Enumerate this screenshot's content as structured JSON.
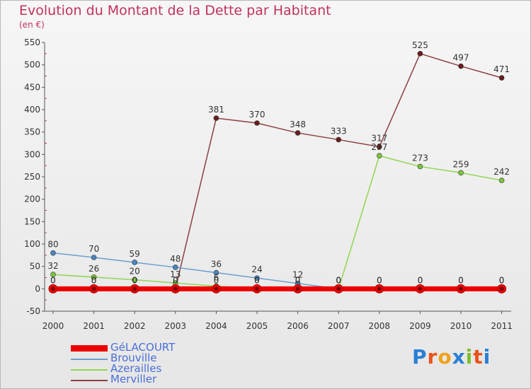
{
  "title": "Evolution du Montant de la Dette par Habitant",
  "unit": "(en €)",
  "logo": {
    "text": "Proxiti",
    "letter_colors": [
      "#2a7fd4",
      "#e8541c",
      "#f0a21b",
      "#2a7fd4",
      "#7cbf2a",
      "#e8541c",
      "#2a7fd4"
    ]
  },
  "chart_data": {
    "type": "line",
    "title": "Evolution du Montant de la Dette par Habitant",
    "xlabel": "",
    "ylabel": "(en €)",
    "x": [
      "2000",
      "2001",
      "2002",
      "2003",
      "2004",
      "2005",
      "2006",
      "2007",
      "2008",
      "2009",
      "2010",
      "2011"
    ],
    "ylim": [
      -50,
      550
    ],
    "yticks": [
      "-50",
      "0",
      "50",
      "100",
      "150",
      "200",
      "250",
      "300",
      "350",
      "400",
      "450",
      "500",
      "550"
    ],
    "grid": false,
    "legend_position": "bottom-left",
    "series": [
      {
        "name": "GéLACOURT",
        "color": "#ee0000",
        "values": [
          0,
          0,
          0,
          0,
          0,
          0,
          0,
          0,
          0,
          0,
          0,
          0
        ],
        "labels": [
          "0",
          "0",
          "0",
          "0",
          "0",
          "0",
          "0",
          "0",
          "0",
          "0",
          "0",
          "0"
        ]
      },
      {
        "name": "Brouville",
        "color": "#6a9fd0",
        "values": [
          80,
          70,
          59,
          48,
          36,
          24,
          12,
          0,
          0,
          0,
          0,
          0
        ],
        "labels": [
          "80",
          "70",
          "59",
          "48",
          "36",
          "24",
          "12",
          "0",
          "0",
          "0",
          "0",
          "0"
        ]
      },
      {
        "name": "Azerailles",
        "color": "#8fd650",
        "values": [
          32,
          26,
          20,
          13,
          6,
          0,
          0,
          0,
          297,
          273,
          259,
          242
        ],
        "labels": [
          "32",
          "26",
          "20",
          "13",
          "6",
          "0",
          "0",
          "0",
          "297",
          "273",
          "259",
          "242"
        ]
      },
      {
        "name": "Merviller",
        "color": "#8b4040",
        "values": [
          0,
          0,
          0,
          0,
          381,
          370,
          348,
          333,
          317,
          525,
          497,
          471
        ],
        "labels": [
          "0",
          "0",
          "0",
          "0",
          "381",
          "370",
          "348",
          "333",
          "317",
          "525",
          "497",
          "471"
        ]
      }
    ]
  }
}
